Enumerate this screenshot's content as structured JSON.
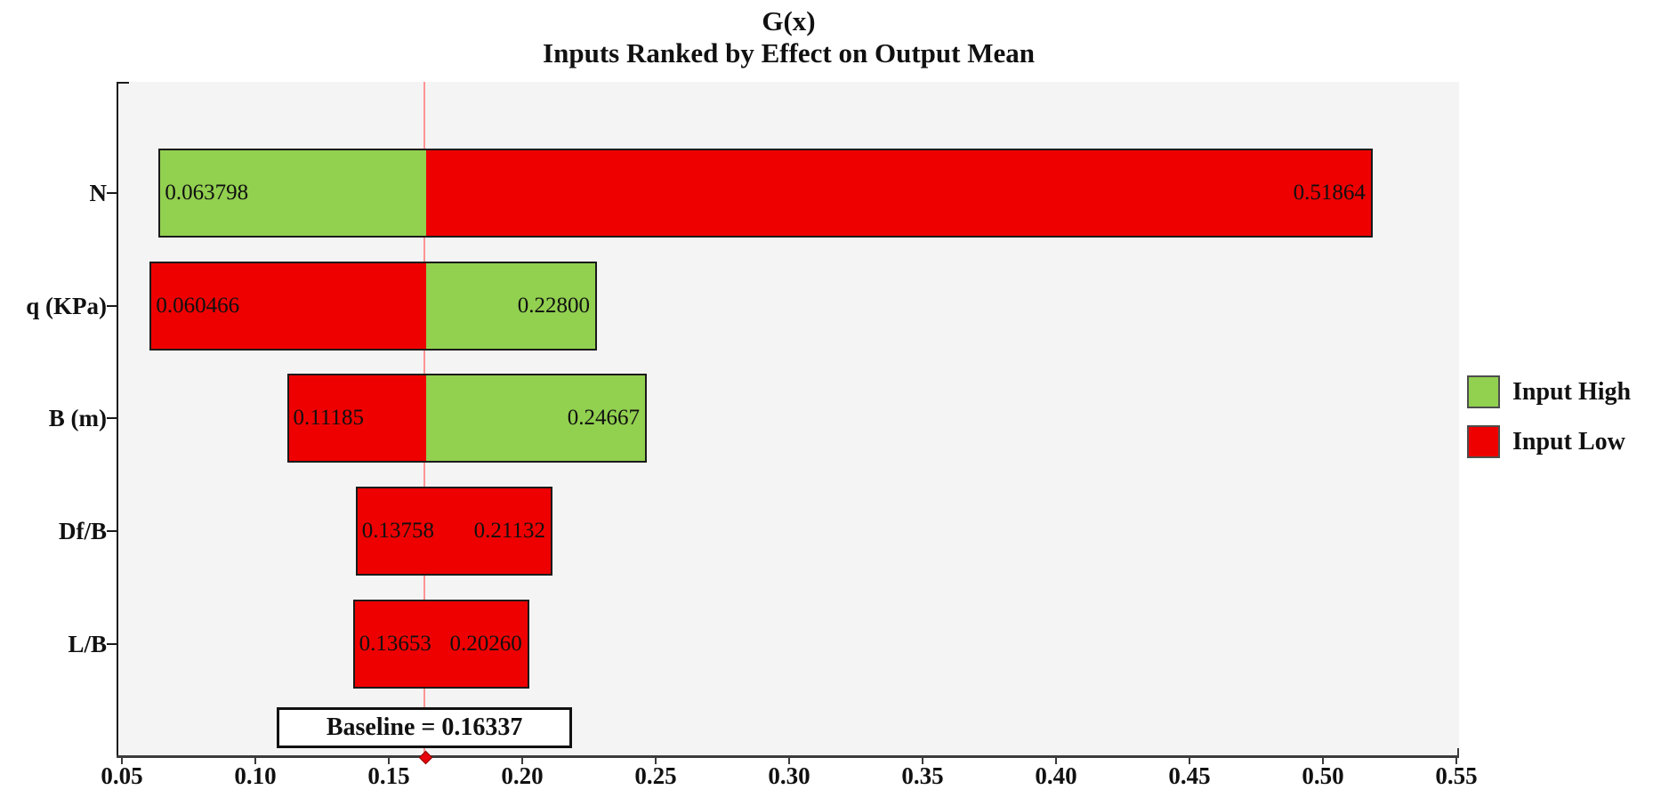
{
  "chart_data": {
    "type": "bar",
    "subtype": "tornado",
    "orientation": "horizontal",
    "title": "G(x)",
    "subtitle": "Inputs Ranked by Effect on Output Mean",
    "baseline": 0.16337,
    "baseline_label": "Baseline = 0.16337",
    "grid": false,
    "legend_position": "right",
    "xlim": [
      0.0487,
      0.5513
    ],
    "x_ticks": [
      0.05,
      0.1,
      0.15,
      0.2,
      0.25,
      0.3,
      0.35,
      0.4,
      0.45,
      0.5,
      0.55
    ],
    "x_tick_labels": [
      "0.05",
      "0.10",
      "0.15",
      "0.20",
      "0.25",
      "0.30",
      "0.35",
      "0.40",
      "0.45",
      "0.50",
      "0.55"
    ],
    "categories": [
      "N",
      "q (KPa)",
      "B (m)",
      "Df/B",
      "L/B"
    ],
    "rows": [
      {
        "label": "N",
        "left": {
          "value": 0.063798,
          "text": "0.063798",
          "input": "high"
        },
        "right": {
          "value": 0.51864,
          "text": "0.51864",
          "input": "low"
        }
      },
      {
        "label": "q (KPa)",
        "left": {
          "value": 0.060466,
          "text": "0.060466",
          "input": "low"
        },
        "right": {
          "value": 0.228,
          "text": "0.22800",
          "input": "high"
        }
      },
      {
        "label": "B (m)",
        "left": {
          "value": 0.11185,
          "text": "0.11185",
          "input": "low"
        },
        "right": {
          "value": 0.24667,
          "text": "0.24667",
          "input": "high"
        }
      },
      {
        "label": "Df/B",
        "left": {
          "value": 0.13758,
          "text": "0.13758",
          "input": "low"
        },
        "right": {
          "value": 0.21132,
          "text": "0.21132",
          "input": "low"
        }
      },
      {
        "label": "L/B",
        "left": {
          "value": 0.13653,
          "text": "0.13653",
          "input": "low"
        },
        "right": {
          "value": 0.2026,
          "text": "0.20260",
          "input": "low"
        }
      }
    ],
    "legend": [
      {
        "label": "Input High",
        "input": "high",
        "color": "#92d050"
      },
      {
        "label": "Input Low",
        "input": "low",
        "color": "#ee0000"
      }
    ],
    "colors": {
      "input_high": "#92d050",
      "input_low": "#ee0000",
      "baseline_line": "#ff9494",
      "plot_bg": "#f4f4f4",
      "bar_border": "#1a1a1a",
      "axis": "#3b3b3b",
      "marker": "#e8000b"
    }
  }
}
